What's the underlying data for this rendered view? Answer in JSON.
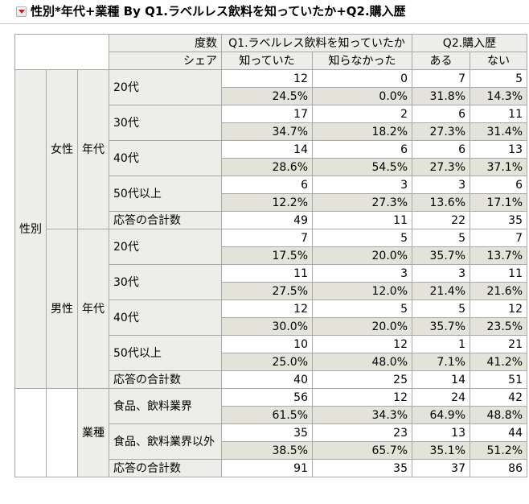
{
  "title": "性別*年代+業種 By Q1.ラベルレス飲料を知っていたか+Q2.購入歴",
  "header": {
    "freq_label": "度数",
    "share_label": "シェア",
    "q1": "Q1.ラベルレス飲料を知っていたか",
    "q2": "Q2.購入歴",
    "cols": [
      "知っていた",
      "知らなかった",
      "ある",
      "ない"
    ]
  },
  "labels": {
    "gender": "性別",
    "female": "女性",
    "male": "男性",
    "age": "年代",
    "industry": "業種",
    "total": "応答の合計数"
  },
  "female": {
    "rows": [
      {
        "label": "20代",
        "counts": [
          "12",
          "0",
          "7",
          "5"
        ],
        "shares": [
          "24.5%",
          "0.0%",
          "31.8%",
          "14.3%"
        ]
      },
      {
        "label": "30代",
        "counts": [
          "17",
          "2",
          "6",
          "11"
        ],
        "shares": [
          "34.7%",
          "18.2%",
          "27.3%",
          "31.4%"
        ]
      },
      {
        "label": "40代",
        "counts": [
          "14",
          "6",
          "6",
          "13"
        ],
        "shares": [
          "28.6%",
          "54.5%",
          "27.3%",
          "37.1%"
        ]
      },
      {
        "label": "50代以上",
        "counts": [
          "6",
          "3",
          "3",
          "6"
        ],
        "shares": [
          "12.2%",
          "27.3%",
          "13.6%",
          "17.1%"
        ]
      }
    ],
    "totals": [
      "49",
      "11",
      "22",
      "35"
    ]
  },
  "male": {
    "rows": [
      {
        "label": "20代",
        "counts": [
          "7",
          "5",
          "5",
          "7"
        ],
        "shares": [
          "17.5%",
          "20.0%",
          "35.7%",
          "13.7%"
        ]
      },
      {
        "label": "30代",
        "counts": [
          "11",
          "3",
          "3",
          "11"
        ],
        "shares": [
          "27.5%",
          "12.0%",
          "21.4%",
          "21.6%"
        ]
      },
      {
        "label": "40代",
        "counts": [
          "12",
          "5",
          "5",
          "12"
        ],
        "shares": [
          "30.0%",
          "20.0%",
          "35.7%",
          "23.5%"
        ]
      },
      {
        "label": "50代以上",
        "counts": [
          "10",
          "12",
          "1",
          "21"
        ],
        "shares": [
          "25.0%",
          "48.0%",
          "7.1%",
          "41.2%"
        ]
      }
    ],
    "totals": [
      "40",
      "25",
      "14",
      "51"
    ]
  },
  "industry": {
    "rows": [
      {
        "label": "食品、飲料業界",
        "counts": [
          "56",
          "12",
          "24",
          "42"
        ],
        "shares": [
          "61.5%",
          "34.3%",
          "64.9%",
          "48.8%"
        ]
      },
      {
        "label": "食品、飲料業界以外",
        "counts": [
          "35",
          "23",
          "13",
          "44"
        ],
        "shares": [
          "38.5%",
          "65.7%",
          "35.1%",
          "51.2%"
        ]
      }
    ],
    "totals": [
      "91",
      "35",
      "37",
      "86"
    ]
  }
}
